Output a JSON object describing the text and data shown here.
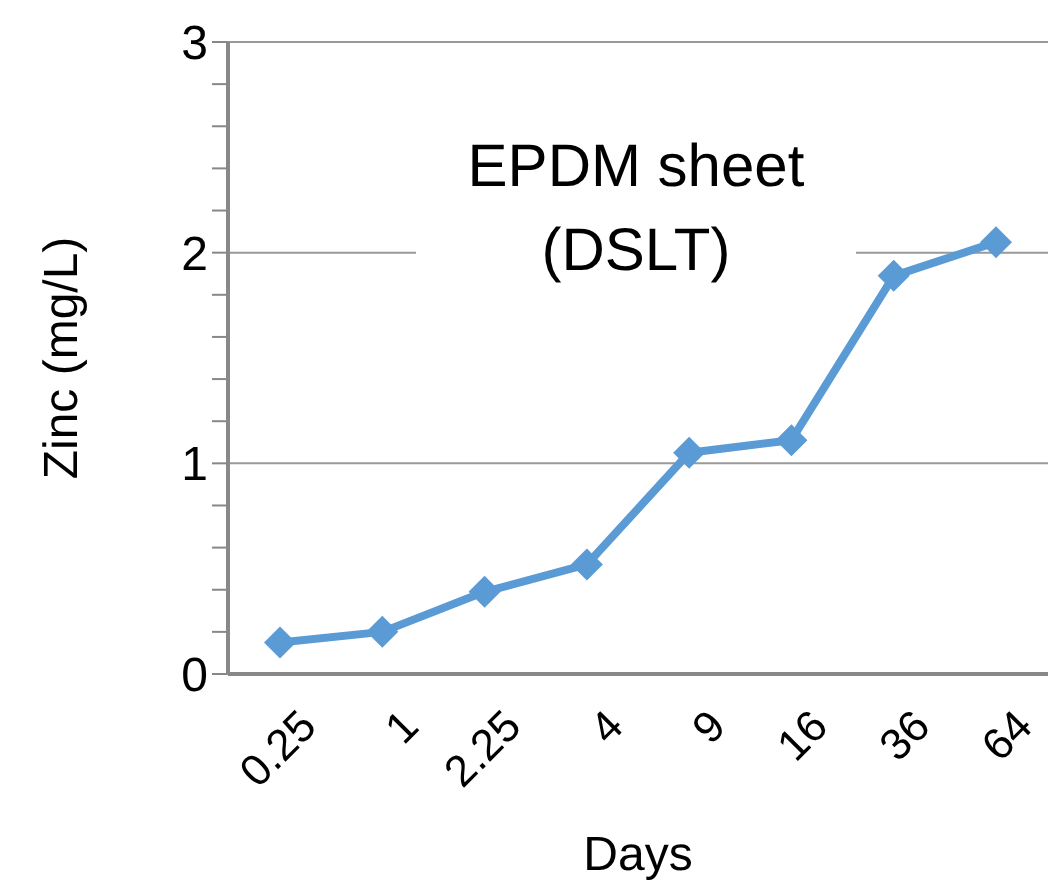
{
  "chart_data": {
    "type": "line",
    "title": "EPDM sheet\n(DSLT)",
    "xlabel": "Days",
    "ylabel": "Zinc (mg/L)",
    "categories": [
      "0.25",
      "1",
      "2.25",
      "4",
      "9",
      "16",
      "36",
      "64"
    ],
    "series": [
      {
        "color": "#5b9bd5",
        "values": [
          0.15,
          0.2,
          0.39,
          0.52,
          1.05,
          1.11,
          1.89,
          2.05
        ]
      }
    ],
    "ylim": [
      0,
      3
    ],
    "yticks": [
      0,
      {
        "value": 0.2,
        "label": null
      },
      {
        "value": 0.4,
        "label": null
      },
      {
        "value": 0.6,
        "label": null
      },
      {
        "value": 0.8,
        "label": null
      },
      1,
      {
        "value": 1.2,
        "label": null
      },
      {
        "value": 1.4,
        "label": null
      },
      {
        "value": 1.6,
        "label": null
      },
      {
        "value": 1.8,
        "label": null
      },
      2,
      {
        "value": 2.2,
        "label": null
      },
      {
        "value": 2.4,
        "label": null
      },
      {
        "value": 2.6,
        "label": null
      },
      {
        "value": 2.8,
        "label": null
      },
      3
    ],
    "grid": "y",
    "legend": false,
    "marker": "diamond",
    "line_style": "solid"
  }
}
